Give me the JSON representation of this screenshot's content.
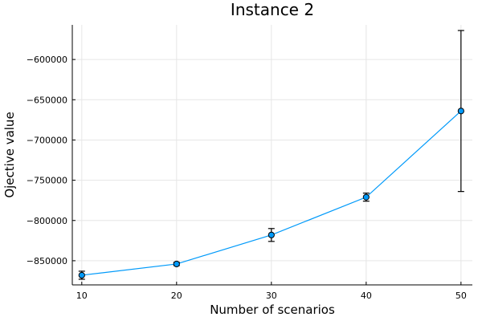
{
  "chart_data": {
    "type": "line",
    "title": "Instance 2",
    "xlabel": "Number of scenarios",
    "ylabel": "Ojective value",
    "x": [
      10,
      20,
      30,
      40,
      50
    ],
    "series": [
      {
        "values": [
          -868000,
          -854000,
          -818000,
          -771000,
          -664000
        ],
        "error_low": [
          -873000,
          -856000,
          -826000,
          -776000,
          -764000
        ],
        "error_high": [
          -863000,
          -852000,
          -810000,
          -766000,
          -564000
        ]
      }
    ],
    "xticks": [
      10,
      20,
      30,
      40,
      50
    ],
    "xtick_labels": [
      "10",
      "20",
      "30",
      "40",
      "50"
    ],
    "yticks": [
      -850000,
      -800000,
      -750000,
      -700000,
      -650000,
      -600000
    ],
    "ytick_labels": [
      "−850000",
      "−800000",
      "−750000",
      "−700000",
      "−650000",
      "−600000"
    ],
    "xlim": [
      9,
      51.2
    ],
    "ylim": [
      -880000,
      -557000
    ],
    "grid": true,
    "legend": "none",
    "colors": {
      "line": "#009AFA",
      "marker_fill": "#009AFA",
      "error_bar": "#000000"
    }
  }
}
